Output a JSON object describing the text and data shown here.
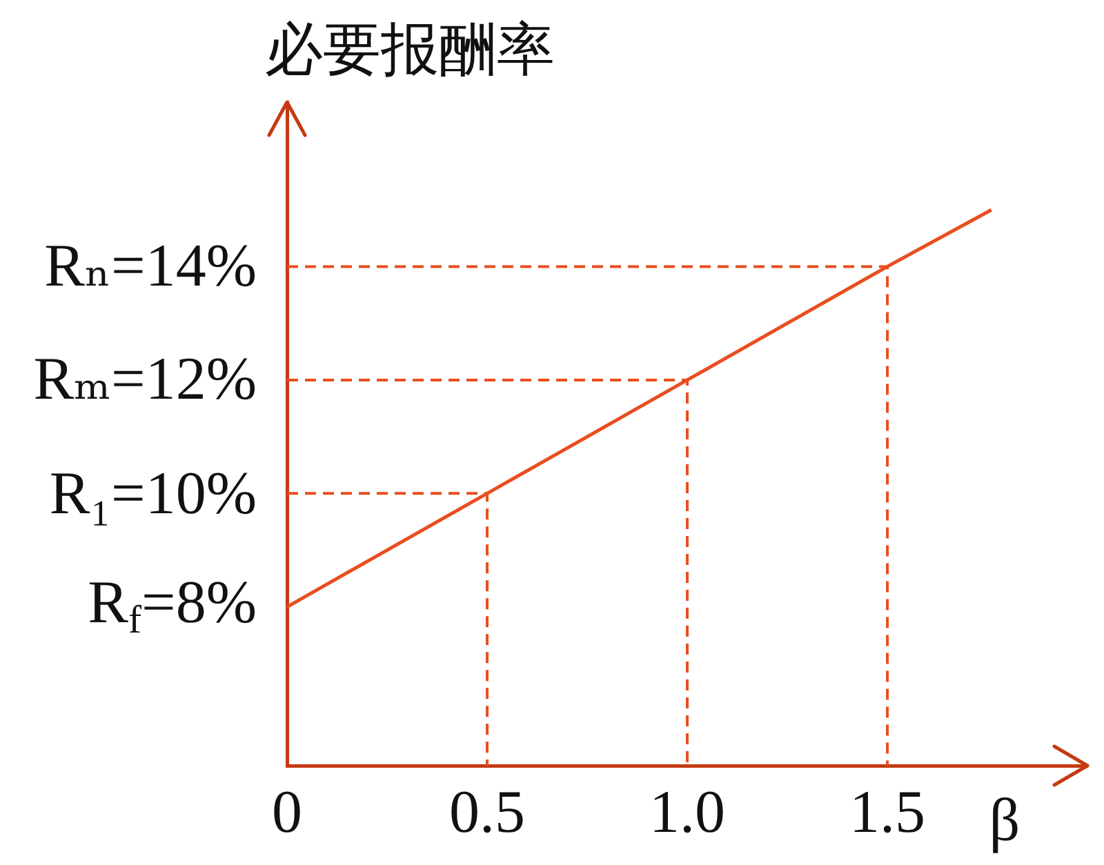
{
  "chart_data": {
    "type": "line",
    "ylabel": "必要报酬率",
    "xlabel": "β",
    "xlim": [
      0,
      2
    ],
    "xticks": [
      0,
      0.5,
      {
        "value": 1,
        "label": "1.0"
      },
      1.5
    ],
    "ylim": [
      5.2,
      16.9
    ],
    "yticks": [
      {
        "value": 8,
        "label": "R$_{f}$=8%"
      },
      {
        "value": 10,
        "label": "R₁=10%"
      },
      {
        "value": 12,
        "label": "Rₘ=12%"
      },
      {
        "value": 14,
        "label": "Rₙ=14%"
      }
    ],
    "series": [
      {
        "color": "#e84e1f",
        "x": [
          0,
          0.5,
          1,
          1.5,
          1.76
        ],
        "values": [
          8,
          10,
          12,
          14,
          15.0
        ]
      },
      {
        "color": "#e84e1f",
        "line_style": "dashed",
        "x": [
          0,
          0.5,
          0.5
        ],
        "values": [
          10,
          10,
          5.2
        ]
      },
      {
        "color": "#e84e1f",
        "line_style": "dashed",
        "x": [
          0,
          1,
          1
        ],
        "values": [
          12,
          12,
          5.2
        ]
      },
      {
        "color": "#e84e1f",
        "line_style": "dashed",
        "x": [
          0,
          1.5,
          1.5
        ],
        "values": [
          14,
          14,
          5.2
        ]
      }
    ],
    "marker": "none",
    "line_style": "solid"
  }
}
